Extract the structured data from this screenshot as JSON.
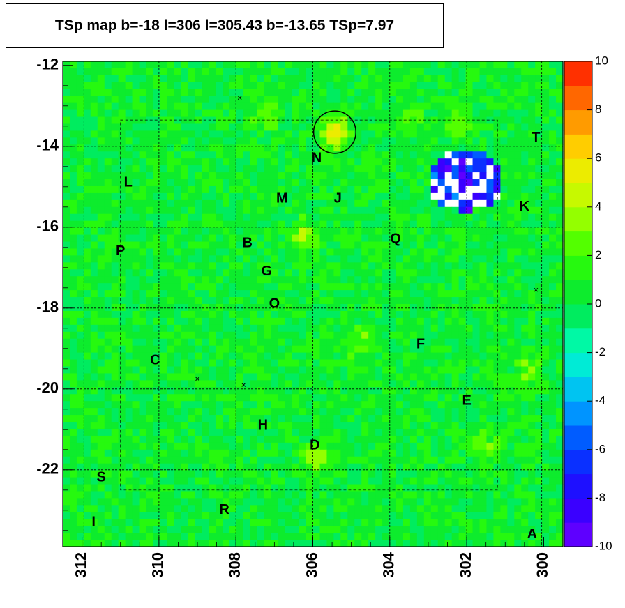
{
  "chart_data": {
    "type": "heatmap",
    "title": "TSp map b=-18 l=306 l=305.43 b=-13.65 TSp=7.97",
    "xlabel": "",
    "ylabel": "",
    "x_range": [
      312.5,
      299.5
    ],
    "y_range": [
      -23.9,
      -11.9
    ],
    "x_ticks": [
      312,
      310,
      308,
      306,
      304,
      302,
      300
    ],
    "y_ticks": [
      -12,
      -14,
      -16,
      -18,
      -20,
      -22
    ],
    "colorbar": {
      "range": [
        -10,
        10
      ],
      "ticks": [
        10,
        8,
        6,
        4,
        2,
        0,
        -2,
        -4,
        -6,
        -8,
        -10
      ]
    },
    "background_value": 0.5,
    "hotspots": [
      {
        "l": 305.43,
        "b": -13.65,
        "value": 8.0
      },
      {
        "l": 306.2,
        "b": -16.2,
        "value": 4.5
      },
      {
        "l": 305.9,
        "b": -21.7,
        "value": 5.0
      },
      {
        "l": 304.8,
        "b": -18.8,
        "value": 3.5
      },
      {
        "l": 303.5,
        "b": -13.3,
        "value": 3.5
      },
      {
        "l": 307.2,
        "b": -13.2,
        "value": 3.0
      },
      {
        "l": 300.4,
        "b": -19.5,
        "value": 3.5
      },
      {
        "l": 301.5,
        "b": -21.4,
        "value": 3.5
      },
      {
        "l": 302.2,
        "b": -13.4,
        "value": 3.0
      }
    ],
    "cold_region": {
      "l_min": 301.1,
      "l_max": 303.0,
      "b_min": -15.6,
      "b_max": -14.1,
      "value": -8.0
    },
    "marker_circle": {
      "l": 305.43,
      "b": -13.65,
      "radius_deg": 0.55
    },
    "grid_l": [
      311.95,
      310.0,
      308.0,
      306.0,
      304.0,
      302.0,
      300.05
    ],
    "grid_b": [
      -14.0,
      -16.0,
      -18.0,
      -20.0,
      -22.0
    ],
    "x_marks": [
      {
        "l": 307.9,
        "b": -12.8
      },
      {
        "l": 300.2,
        "b": -17.55
      },
      {
        "l": 309.0,
        "b": -19.75
      },
      {
        "l": 307.8,
        "b": -19.9
      }
    ],
    "labels": [
      {
        "text": "A",
        "l": 300.3,
        "b": -23.6
      },
      {
        "text": "B",
        "l": 307.7,
        "b": -16.4
      },
      {
        "text": "C",
        "l": 310.1,
        "b": -19.3
      },
      {
        "text": "D",
        "l": 305.95,
        "b": -21.4
      },
      {
        "text": "E",
        "l": 302.0,
        "b": -20.3
      },
      {
        "text": "F",
        "l": 303.2,
        "b": -18.9
      },
      {
        "text": "G",
        "l": 307.2,
        "b": -17.1
      },
      {
        "text": "H",
        "l": 307.3,
        "b": -20.9
      },
      {
        "text": "I",
        "l": 311.7,
        "b": -23.3
      },
      {
        "text": "J",
        "l": 305.35,
        "b": -15.3
      },
      {
        "text": "K",
        "l": 300.5,
        "b": -15.5
      },
      {
        "text": "L",
        "l": 310.8,
        "b": -14.9
      },
      {
        "text": "M",
        "l": 306.8,
        "b": -15.3
      },
      {
        "text": "N",
        "l": 305.9,
        "b": -14.3
      },
      {
        "text": "O",
        "l": 307.0,
        "b": -17.9
      },
      {
        "text": "P",
        "l": 311.0,
        "b": -16.6
      },
      {
        "text": "Q",
        "l": 303.85,
        "b": -16.3
      },
      {
        "text": "R",
        "l": 308.3,
        "b": -23.0
      },
      {
        "text": "S",
        "l": 311.5,
        "b": -22.2
      },
      {
        "text": "T",
        "l": 300.2,
        "b": -13.8
      }
    ]
  }
}
